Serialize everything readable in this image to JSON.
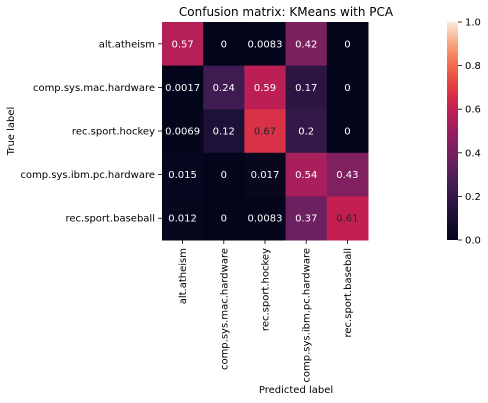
{
  "chart_data": {
    "type": "heatmap",
    "title": "Confusion matrix: KMeans with PCA",
    "xlabel": "Predicted label",
    "ylabel": "True label",
    "x_categories": [
      "alt.atheism",
      "comp.sys.mac.hardware",
      "rec.sport.hockey",
      "comp.sys.ibm.pc.hardware",
      "rec.sport.baseball"
    ],
    "y_categories": [
      "alt.atheism",
      "comp.sys.mac.hardware",
      "rec.sport.hockey",
      "comp.sys.ibm.pc.hardware",
      "rec.sport.baseball"
    ],
    "values": [
      [
        0.57,
        0,
        0.0083,
        0.42,
        0
      ],
      [
        0.0017,
        0.24,
        0.59,
        0.17,
        0
      ],
      [
        0.0069,
        0.12,
        0.67,
        0.2,
        0
      ],
      [
        0.015,
        0,
        0.017,
        0.54,
        0.43
      ],
      [
        0.012,
        0,
        0.0083,
        0.37,
        0.61
      ]
    ],
    "cell_labels": [
      [
        "0.57",
        "0",
        "0.0083",
        "0.42",
        "0"
      ],
      [
        "0.0017",
        "0.24",
        "0.59",
        "0.17",
        "0"
      ],
      [
        "0.0069",
        "0.12",
        "0.67",
        "0.2",
        "0"
      ],
      [
        "0.015",
        "0",
        "0.017",
        "0.54",
        "0.43"
      ],
      [
        "0.012",
        "0",
        "0.0083",
        "0.37",
        "0.61"
      ]
    ],
    "colorbar": {
      "range": [
        0,
        1
      ],
      "ticks": [
        "0.0",
        "0.2",
        "0.4",
        "0.6",
        "0.8",
        "1.0"
      ],
      "colormap": "rocket"
    },
    "grid": false
  }
}
